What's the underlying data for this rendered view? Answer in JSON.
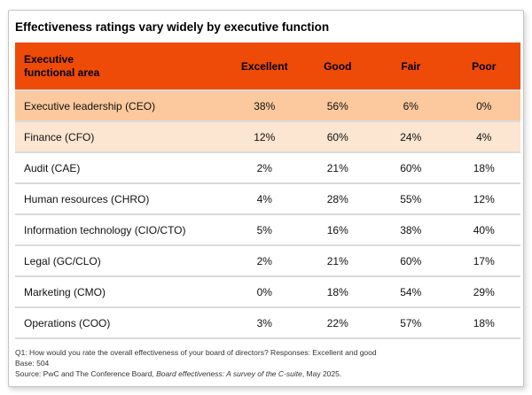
{
  "title": "Effectiveness ratings vary widely by executive function",
  "colors": {
    "header_bg": "#EE4A08",
    "header_text": "#000000",
    "row_strong": "#FBC99D",
    "row_light": "#FCE5D1",
    "divider": "#DBDBDB",
    "card_border": "#C4C4C4"
  },
  "table": {
    "header": {
      "area_label": "Executive\nfunctional area",
      "columns": [
        "Excellent",
        "Good",
        "Fair",
        "Poor"
      ]
    },
    "rows": [
      {
        "label": "Executive leadership (CEO)",
        "values": [
          "38%",
          "56%",
          "6%",
          "0%"
        ],
        "highlight": "row_strong"
      },
      {
        "label": "Finance (CFO)",
        "values": [
          "12%",
          "60%",
          "24%",
          "4%"
        ],
        "highlight": "row_light"
      },
      {
        "label": "Audit (CAE)",
        "values": [
          "2%",
          "21%",
          "60%",
          "18%"
        ],
        "highlight": null
      },
      {
        "label": "Human resources (CHRO)",
        "values": [
          "4%",
          "28%",
          "55%",
          "12%"
        ],
        "highlight": null
      },
      {
        "label": "Information technology (CIO/CTO)",
        "values": [
          "5%",
          "16%",
          "38%",
          "40%"
        ],
        "highlight": null
      },
      {
        "label": "Legal (GC/CLO)",
        "values": [
          "2%",
          "21%",
          "60%",
          "17%"
        ],
        "highlight": null
      },
      {
        "label": "Marketing (CMO)",
        "values": [
          "0%",
          "18%",
          "54%",
          "29%"
        ],
        "highlight": null
      },
      {
        "label": "Operations (COO)",
        "values": [
          "3%",
          "22%",
          "57%",
          "18%"
        ],
        "highlight": null
      }
    ]
  },
  "footnotes": {
    "question": "Q1: How would you rate the overall effectiveness of your board of directors? Responses: Excellent and good",
    "base": "Base: 504",
    "source_prefix": "Source: PwC and The Conference Board, ",
    "source_title": "Board effectiveness: A survey of the C-suite",
    "source_suffix": ", May 2025."
  },
  "chart_data": {
    "type": "table",
    "title": "Effectiveness ratings vary widely by executive function",
    "row_header": "Executive functional area",
    "categories": [
      "Executive leadership (CEO)",
      "Finance (CFO)",
      "Audit (CAE)",
      "Human resources (CHRO)",
      "Information technology (CIO/CTO)",
      "Legal (GC/CLO)",
      "Marketing (CMO)",
      "Operations (COO)"
    ],
    "series": [
      {
        "name": "Excellent",
        "values": [
          38,
          12,
          2,
          4,
          5,
          2,
          0,
          3
        ]
      },
      {
        "name": "Good",
        "values": [
          56,
          60,
          21,
          28,
          16,
          21,
          18,
          22
        ]
      },
      {
        "name": "Fair",
        "values": [
          6,
          24,
          60,
          55,
          38,
          60,
          54,
          57
        ]
      },
      {
        "name": "Poor",
        "values": [
          0,
          4,
          18,
          12,
          40,
          17,
          29,
          18
        ]
      }
    ],
    "units": "percent",
    "highlighted_rows": [
      "Executive leadership (CEO)",
      "Finance (CFO)"
    ]
  }
}
